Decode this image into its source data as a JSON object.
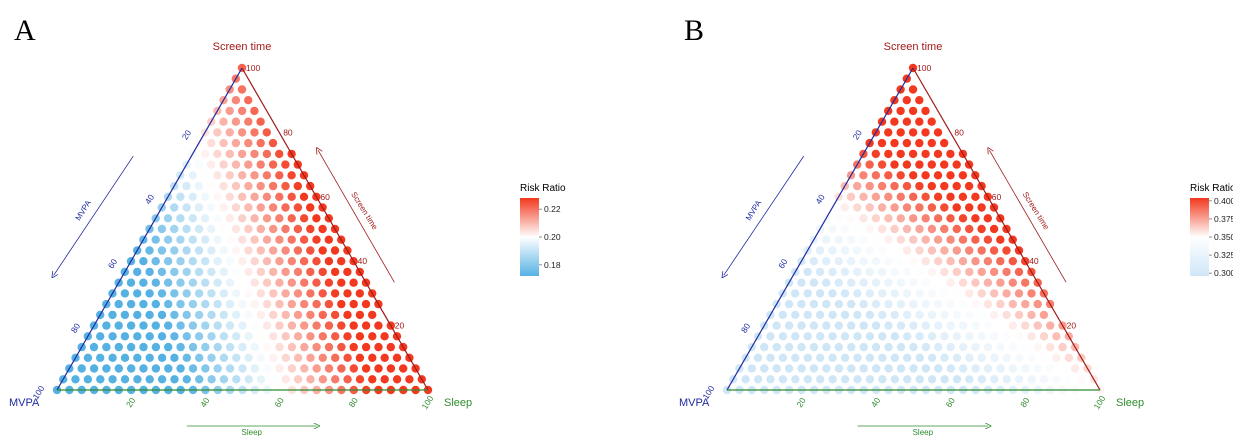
{
  "chart_data": [
    {
      "type": "ternary",
      "panel_label": "A",
      "corners": {
        "top": "Screen time",
        "left": "MVPA",
        "right": "Sleep"
      },
      "axis_arrow_labels": {
        "left": "MVPA",
        "right": "Screen time",
        "bottom": "Sleep"
      },
      "ticks": {
        "left": [
          "20",
          "40",
          "60",
          "80",
          "100"
        ],
        "right": [
          "20",
          "40",
          "60",
          "80",
          "100"
        ],
        "bottom": [
          "20",
          "40",
          "60",
          "80",
          "100"
        ]
      },
      "axis_colors": {
        "left": "#1f2aa0",
        "right": "#a01a1a",
        "bottom": "#2e8b2e"
      },
      "legend": {
        "title": "Risk Ratio",
        "ticks": [
          0.18,
          0.2,
          0.22
        ],
        "min": 0.172,
        "max": 0.228
      },
      "colorscale": {
        "low": "#56b1e3",
        "mid": "#ffffff",
        "high": "#f2391f"
      },
      "model": {
        "intercept": 0.2,
        "mvpa": -0.024,
        "screen": 0.006,
        "sleep": 0.014,
        "min_mvpa_pct": 0
      }
    },
    {
      "type": "ternary",
      "panel_label": "B",
      "corners": {
        "top": "Screen time",
        "left": "MVPA",
        "right": "Sleep"
      },
      "axis_arrow_labels": {
        "left": "MVPA",
        "right": "Screen time",
        "bottom": "Sleep"
      },
      "ticks": {
        "left": [
          "20",
          "40",
          "60",
          "80",
          "100"
        ],
        "right": [
          "20",
          "40",
          "60",
          "80",
          "100"
        ],
        "bottom": [
          "20",
          "40",
          "60",
          "80",
          "100"
        ]
      },
      "axis_colors": {
        "left": "#1f2aa0",
        "right": "#a01a1a",
        "bottom": "#2e8b2e"
      },
      "legend": {
        "title": "Risk Ratio",
        "ticks": [
          0.3,
          0.325,
          0.35,
          0.375,
          0.4
        ],
        "min": 0.296,
        "max": 0.404
      },
      "colorscale": {
        "low": "#cfe6f7",
        "mid": "#ffffff",
        "high": "#f2391f"
      },
      "model": {
        "intercept": 0.338,
        "mvpa": -0.04,
        "screen": 0.055,
        "sleep": 0.015,
        "min_mvpa_pct": 0
      }
    }
  ]
}
